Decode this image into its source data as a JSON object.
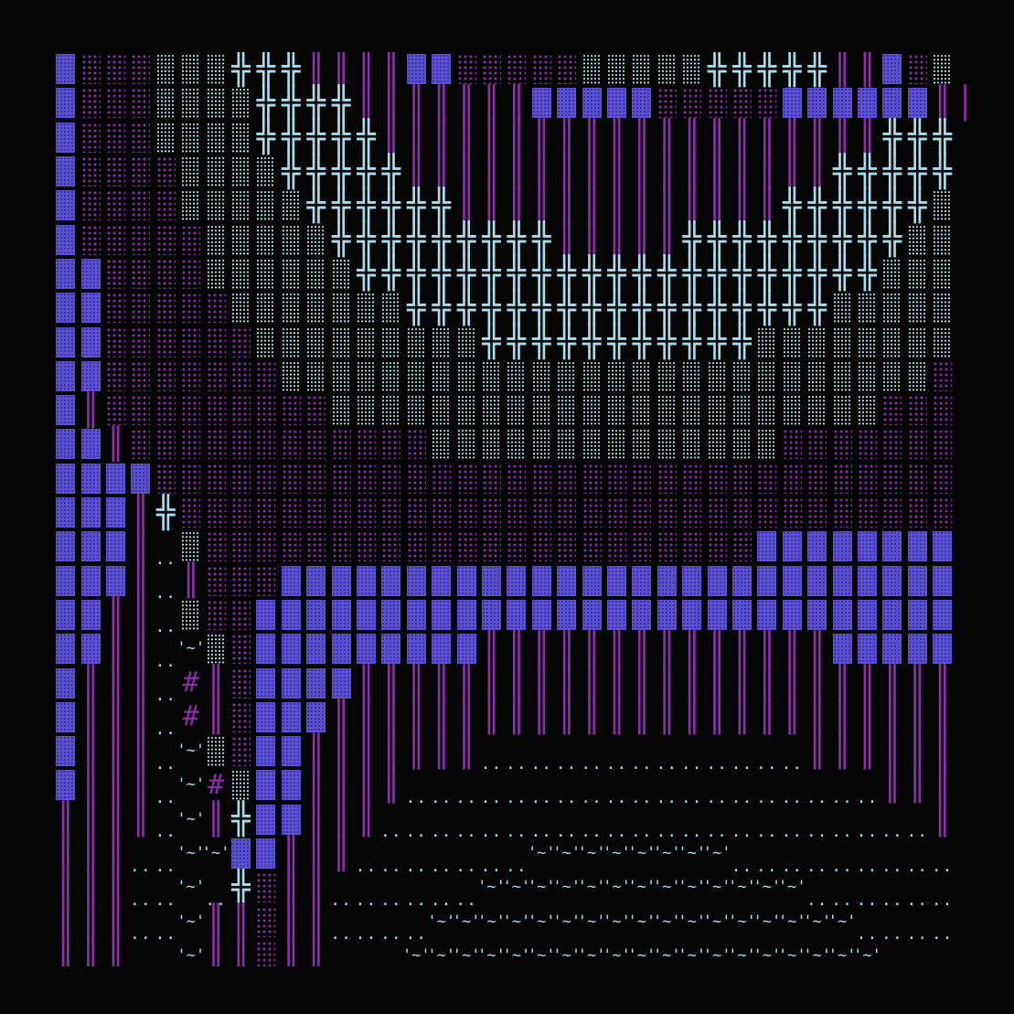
{
  "colors": {
    "background": "#050505",
    "blue": "#5b4fd2",
    "purple": "#8a2fa8",
    "cyan": "#a8dcea"
  },
  "glyphs": {
    "+": "╬",
    "|": "║",
    ".": "..",
    "~": "'~'",
    "#": "#",
    ":": ":"
  },
  "rows": [
    "Bmmmddd+++||||BBmmmmmddddd+++++||Bmd",
    "Bmmmdddd++++|||||||BBBBBmmmmmBBBBBB|||",
    "Bmmmdddd+++++||||||||||||||||||||+++",
    "Bmmmmdddd+++++|||||||||||||||||+++++",
    "Bmmmmddddd++++++|||||||||||||++++++d",
    "Bmmmmmddddd+++++++++|||||+++++++++dd",
    "BBmmmmdddddd+++++++++++++++++++++ddd",
    "BBmmmmmddddddd+++++++++++++++++ddddd",
    "BBmmmmmmddddddddd+++++++++++dddddddd",
    "BBmmmmmmmddddddddddddddddddddddddddm",
    "B|mmmmmmmmmddddddddddddddddddddddmmm",
    "BB|mmmmmmmmmmmmddddddddddddddmmmmmmm",
    "BBBBmmmmmmmmmmmmmmmmmmmmmmmmmmmmmmmm",
    "BBB|+mmmmmmmmmmmmmmmmmmmmmmmmmmmmmmm",
    "BBB|.dmmmmmmmmmmmmmmmmmmmmmmBBBBBBBB",
    "BBB|.|mmmBBBBBBBBBBBBBBBBBBBBBBBBBBB",
    "BB||.dmmBBBBBBBBBBBBBBBBBBBBBBBBBBBB",
    "BB||.~dmBBBBBBBBB||||||||||||||BBBBB",
    "B|||.#|mBBBB||||||||||||||||||||||||",
    "B|||.#|mBBB|||||||||||||||||||||||||",
    "B|||.~dmBB|||||||.............||||||",
    "B|||.~#dBB||||...................|||",
    "||||.~|+BB|||......................|",
    "|||..~~BB|||.......~~~~~~~~.........",
    "|||..~.+m||......~~~~~~~~~~~~~......",
    "|||..~||m||....~~~~~~~~~~~~~~~~~....",
    "|||  ~||m||   ~~~~~~~~~~~~~~~~~~~   "
  ]
}
